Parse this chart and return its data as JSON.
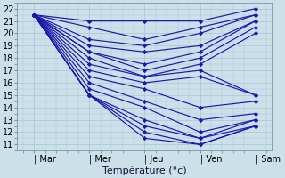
{
  "xlabel": "Température (°c)",
  "day_labels": [
    "| Mar",
    "| Mer",
    "| Jeu",
    "| Ven",
    "| Sam"
  ],
  "day_positions": [
    0,
    1,
    2,
    3,
    4
  ],
  "ylim": [
    10.5,
    22.5
  ],
  "yticks": [
    11,
    12,
    13,
    14,
    15,
    16,
    17,
    18,
    19,
    20,
    21,
    22
  ],
  "bg_color": "#cce0ea",
  "grid_color": "#aac4d2",
  "line_color": "#1a1aaa",
  "series": [
    [
      21.5,
      21.0,
      21.0,
      21.0,
      22.0
    ],
    [
      21.5,
      20.5,
      19.5,
      20.5,
      21.5
    ],
    [
      21.5,
      19.5,
      19.0,
      20.0,
      21.5
    ],
    [
      21.5,
      19.0,
      18.5,
      19.0,
      21.0
    ],
    [
      21.5,
      18.5,
      17.5,
      18.5,
      21.0
    ],
    [
      21.5,
      18.5,
      17.0,
      18.0,
      20.5
    ],
    [
      21.5,
      18.0,
      16.5,
      17.5,
      20.0
    ],
    [
      21.5,
      17.5,
      16.5,
      17.0,
      15.0
    ],
    [
      21.5,
      17.0,
      16.0,
      16.5,
      15.0
    ],
    [
      21.5,
      16.5,
      15.5,
      14.0,
      14.5
    ],
    [
      21.5,
      16.0,
      14.5,
      13.0,
      13.5
    ],
    [
      21.5,
      15.5,
      14.0,
      12.0,
      13.0
    ],
    [
      21.5,
      15.0,
      13.0,
      11.5,
      13.0
    ],
    [
      21.5,
      15.0,
      12.5,
      11.5,
      12.5
    ],
    [
      21.5,
      15.0,
      12.0,
      11.0,
      12.5
    ],
    [
      21.5,
      15.0,
      11.5,
      11.0,
      12.5
    ]
  ],
  "xlabel_fontsize": 8,
  "tick_fontsize": 7,
  "figsize": [
    3.2,
    2.0
  ],
  "dpi": 100
}
